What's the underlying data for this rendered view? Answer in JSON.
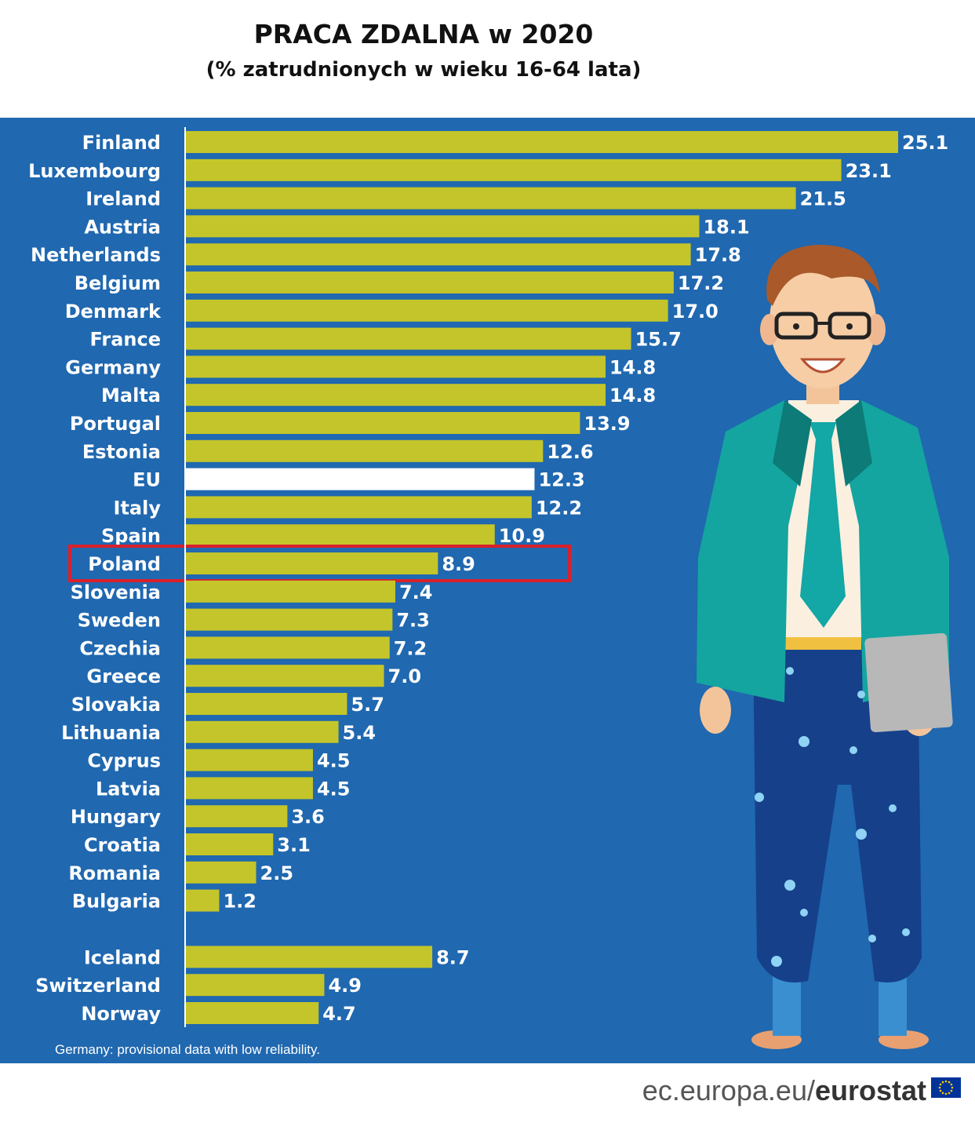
{
  "header": {
    "title": "PRACA ZDALNA w 2020",
    "subtitle": "(% zatrudnionych w wieku 16-64 lata)"
  },
  "chart_data": {
    "type": "bar",
    "orientation": "horizontal",
    "title": "PRACA ZDALNA w 2020",
    "subtitle": "(% zatrudnionych w wieku 16-64 lata)",
    "categories": [
      "Finland",
      "Luxembourg",
      "Ireland",
      "Austria",
      "Netherlands",
      "Belgium",
      "Denmark",
      "France",
      "Germany",
      "Malta",
      "Portugal",
      "Estonia",
      "EU",
      "Italy",
      "Spain",
      "Poland",
      "Slovenia",
      "Sweden",
      "Czechia",
      "Greece",
      "Slovakia",
      "Lithuania",
      "Cyprus",
      "Latvia",
      "Hungary",
      "Croatia",
      "Romania",
      "Bulgaria",
      "Iceland",
      "Switzerland",
      "Norway"
    ],
    "values": [
      25.1,
      23.1,
      21.5,
      18.1,
      17.8,
      17.2,
      17.0,
      15.7,
      14.8,
      14.8,
      13.9,
      12.6,
      12.3,
      12.2,
      10.9,
      8.9,
      7.4,
      7.3,
      7.2,
      7.0,
      5.7,
      5.4,
      4.5,
      4.5,
      3.6,
      3.1,
      2.5,
      1.2,
      8.7,
      4.9,
      4.7
    ],
    "value_labels": [
      "25.1",
      "23.1",
      "21.5",
      "18.1",
      "17.8",
      "17.2",
      "17.0",
      "15.7",
      "14.8",
      "14.8",
      "13.9",
      "12.6",
      "12.3",
      "12.2",
      "10.9",
      "8.9",
      "7.4",
      "7.3",
      "7.2",
      "7.0",
      "5.7",
      "5.4",
      "4.5",
      "4.5",
      "3.6",
      "3.1",
      "2.5",
      "1.2",
      "8.7",
      "4.9",
      "4.7"
    ],
    "highlight_white": "EU",
    "highlight_box": "Poland",
    "group_break_after": "Bulgaria",
    "xlim": [
      0,
      25.1
    ],
    "grid": false,
    "colors": {
      "bar": "#c3c52a",
      "eu_bar": "#ffffff",
      "background": "#2068b0",
      "highlight_border": "#d9202a",
      "text": "#ffffff"
    }
  },
  "note": "Germany: provisional data with low reliability.",
  "footer": {
    "brand_prefix": "ec.europa.eu/",
    "brand_name": "eurostat"
  }
}
